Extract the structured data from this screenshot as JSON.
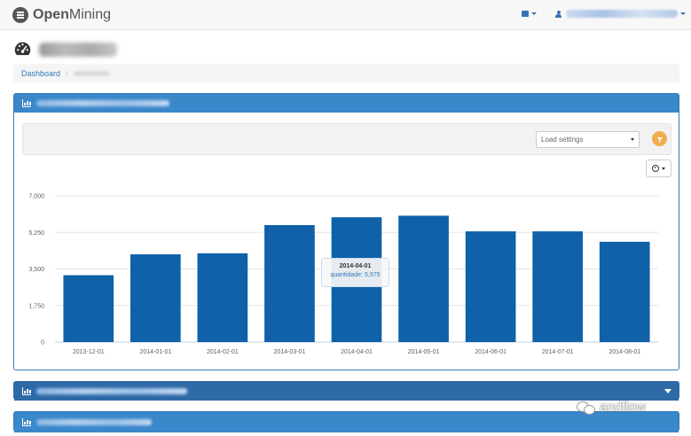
{
  "navbar": {
    "brand_bold": "Open",
    "brand_rest": "Mining"
  },
  "breadcrumb": {
    "home": "Dashboard",
    "separator": "/"
  },
  "panel1": {
    "filter": {
      "select_value": "Load settings"
    },
    "tooltip": {
      "title": "2014-04-01",
      "series_label": "quantidade",
      "value": "5,975"
    }
  },
  "colors": {
    "bar": "#0f61a8",
    "panel_heading": "#3a87c9",
    "filter_button": "#f0ad4e"
  },
  "icons": [
    "menu-icon",
    "dashboard-icon",
    "user-icon",
    "gauge-icon",
    "bar-chart-icon",
    "filter-icon",
    "clock-icon",
    "chevron-down-icon"
  ],
  "chart_data": {
    "type": "bar",
    "categories": [
      "2013-12-01",
      "2014-01-01",
      "2014-02-01",
      "2014-03-01",
      "2014-04-01",
      "2014-05-01",
      "2014-06-01",
      "2014-07-01",
      "2014-08-01"
    ],
    "series": [
      {
        "name": "quantidade",
        "values": [
          3200,
          4200,
          4250,
          5600,
          5975,
          6050,
          5300,
          5300,
          4800
        ]
      }
    ],
    "yticks": [
      "7,000",
      "5,250",
      "3,500",
      "1,750",
      "0"
    ],
    "ylim": [
      0,
      7000
    ],
    "grid": true,
    "legend": "none"
  },
  "watermark": "andflow"
}
